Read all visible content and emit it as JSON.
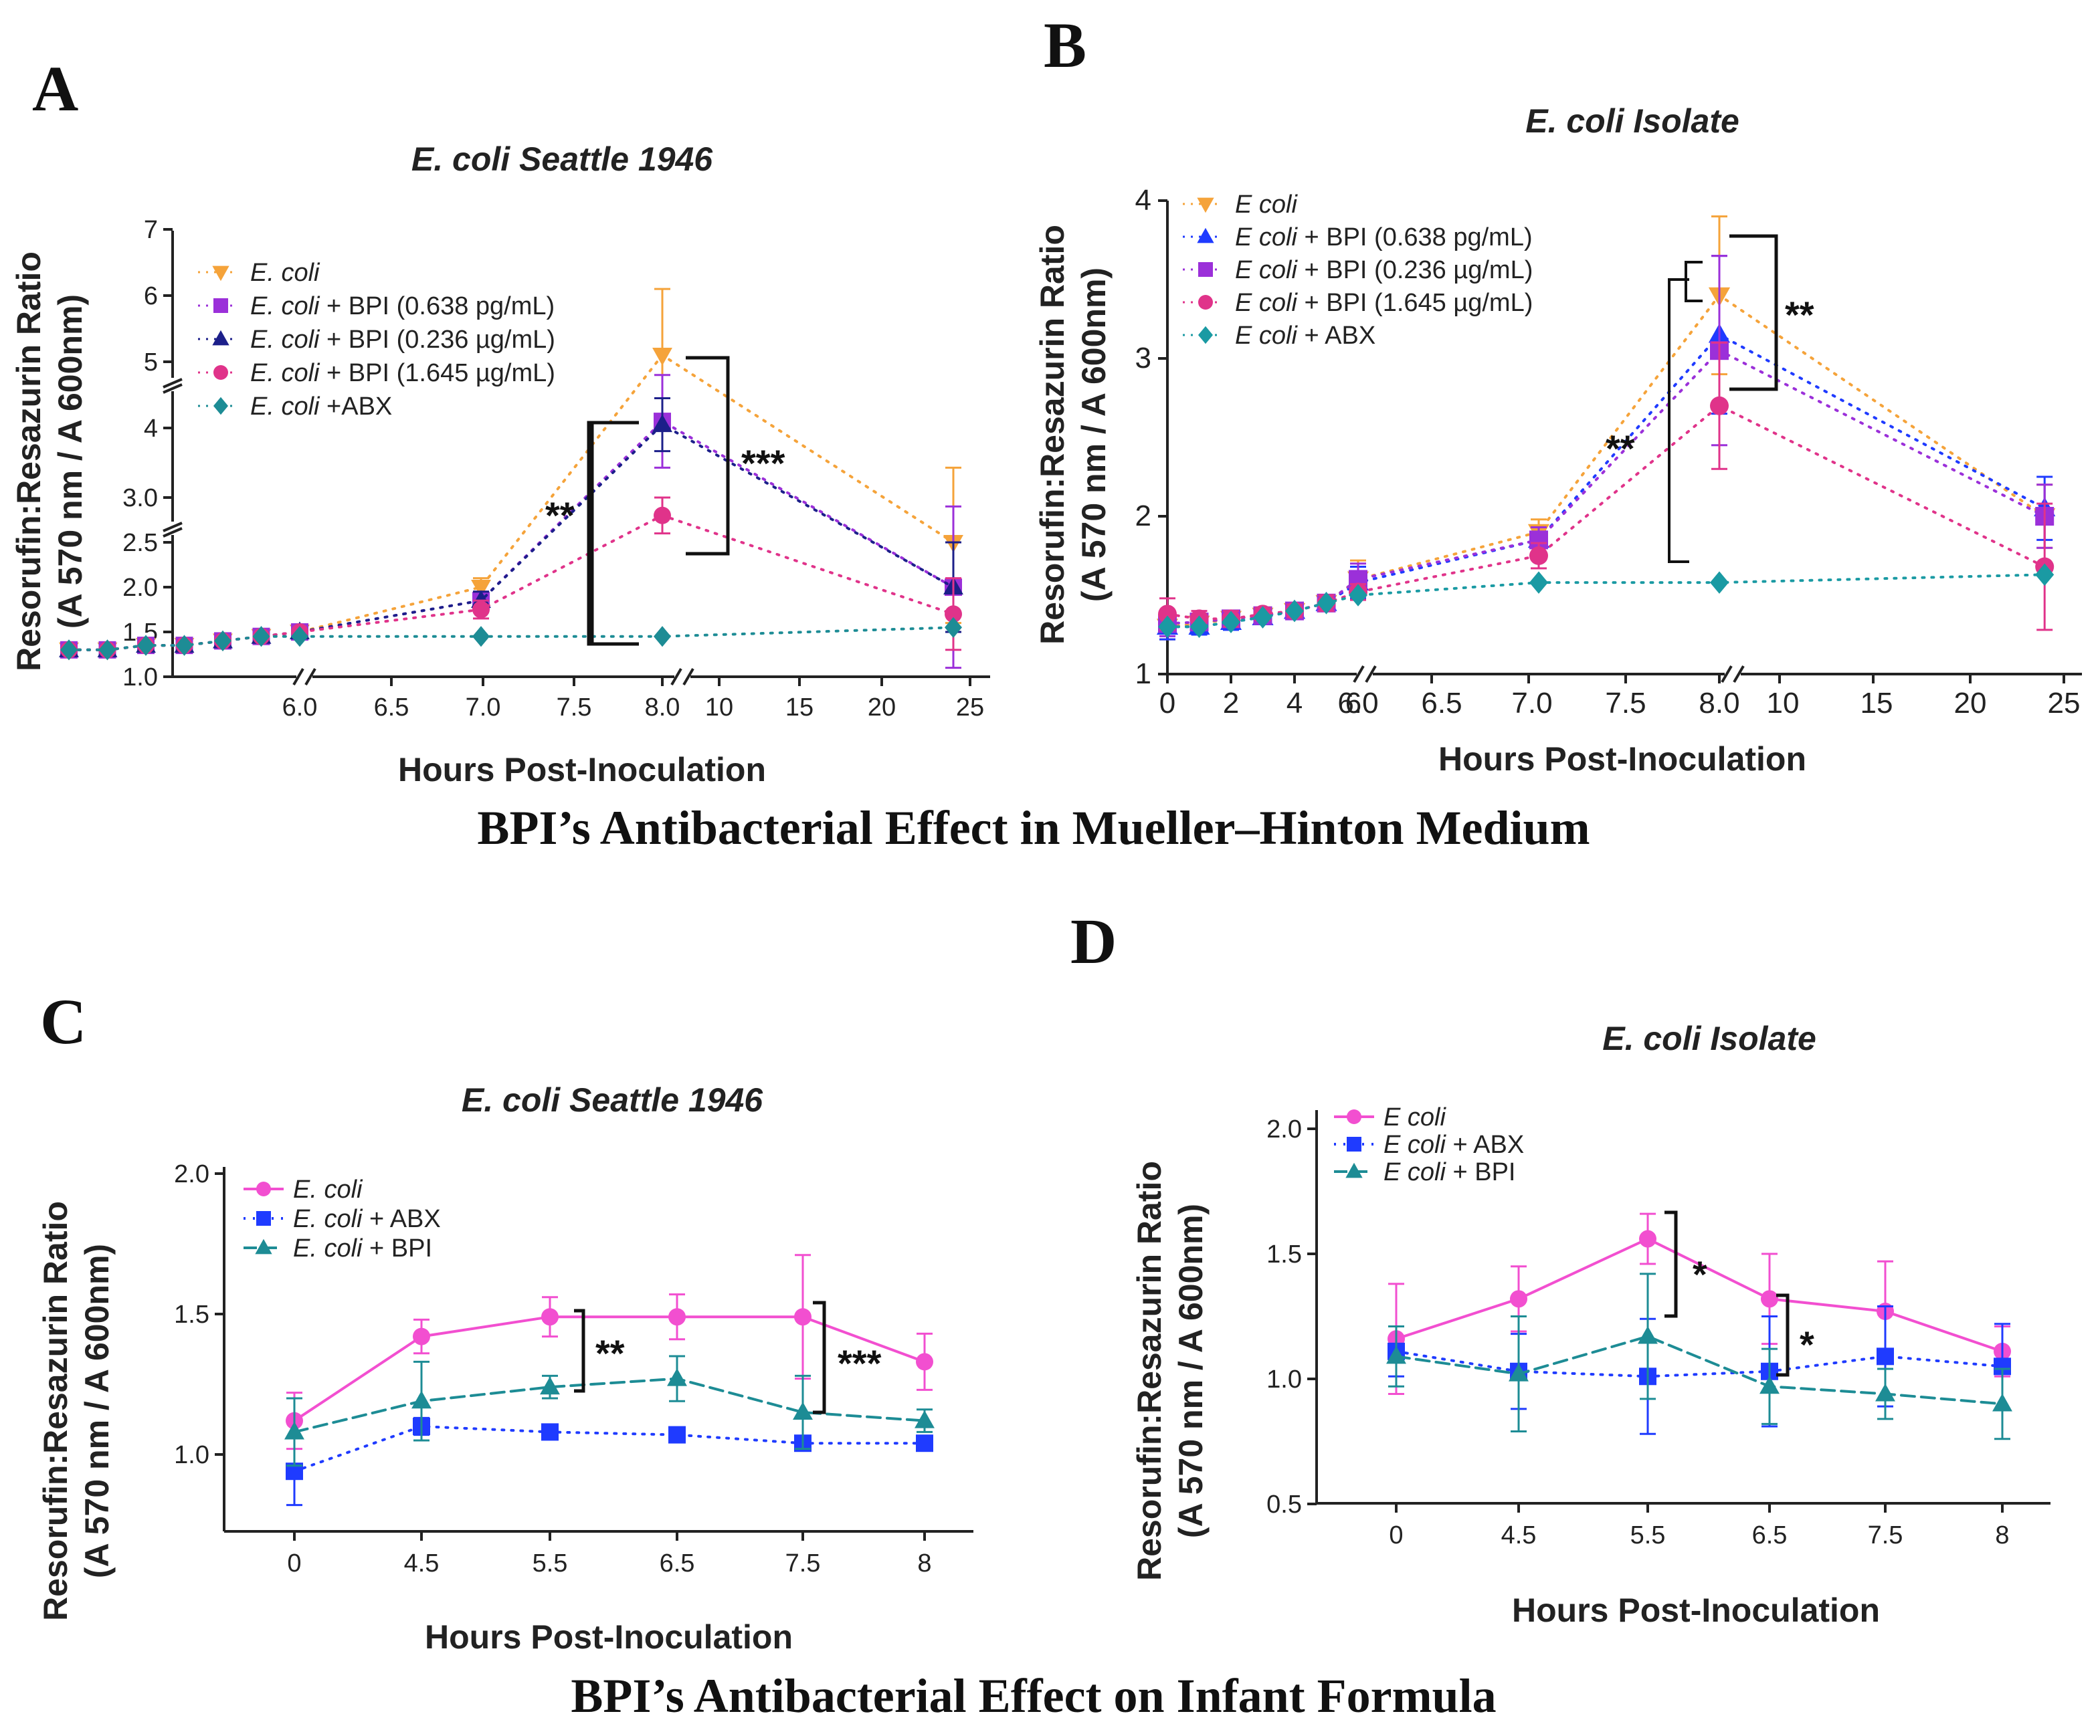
{
  "figure": {
    "caption_top": "BPI’s Antibacterial Effect in Mueller–Hinton Medium",
    "caption_bottom": "BPI’s Antibacterial Effect on Infant Formula"
  },
  "colors": {
    "orange": "#f5a33a",
    "magenta": "#e0338a",
    "purple": "#9b30d9",
    "navy": "#1c1f8a",
    "blue": "#1f3bff",
    "teal": "#1d8c95",
    "pink": "#f24fd0",
    "cyan": "#1a9aa3"
  },
  "chart_data": [
    {
      "id": "A",
      "panel_label": "A",
      "type": "line",
      "title": "E. coli Seattle 1946",
      "xlabel": "Hours Post-Inoculation",
      "ylabel": [
        "Resorufin:Resazurin Ratio",
        "(A 570 nm / A 600nm)"
      ],
      "x_ticks": [
        "6.0",
        "6.5",
        "7.0",
        "7.5",
        "8.0",
        "10",
        "15",
        "20",
        "25"
      ],
      "y_ticks": [
        "1.0",
        "1.5",
        "2.0",
        "2.5",
        "3.0",
        "4",
        "5",
        "6",
        "7"
      ],
      "ylim": [
        1.0,
        7.0
      ],
      "series": [
        {
          "name": "E. coli",
          "legend_italic": "E. coli",
          "legend_rest": "",
          "color": "#f5a33a",
          "marker": "tri-down",
          "x": [
            4.5,
            4.75,
            5.0,
            5.25,
            5.5,
            5.75,
            6.0,
            7.0,
            8.0,
            24
          ],
          "y": [
            1.3,
            1.3,
            1.35,
            1.35,
            1.4,
            1.45,
            1.5,
            2.0,
            5.1,
            2.5
          ],
          "err": [
            0,
            0,
            0,
            0,
            0,
            0,
            0,
            0.1,
            1.0,
            0.9
          ]
        },
        {
          "name": "E. coli + BPI (0.638 pg/mL)",
          "legend_italic": "E. coli",
          "legend_rest": " + BPI (0.638 pg/mL)",
          "color": "#9b30d9",
          "marker": "square",
          "x": [
            4.5,
            4.75,
            5.0,
            5.25,
            5.5,
            5.75,
            6.0,
            7.0,
            8.0,
            24
          ],
          "y": [
            1.3,
            1.3,
            1.35,
            1.35,
            1.4,
            1.45,
            1.5,
            1.85,
            4.1,
            2.0
          ],
          "err": [
            0,
            0,
            0,
            0,
            0,
            0,
            0,
            0.1,
            0.7,
            0.9
          ]
        },
        {
          "name": "E. coli + BPI (0.236 µg/mL)",
          "legend_italic": "E. coli",
          "legend_rest": " + BPI (0.236 µg/mL)",
          "color": "#1c1f8a",
          "marker": "tri-up",
          "x": [
            4.5,
            4.75,
            5.0,
            5.25,
            5.5,
            5.75,
            6.0,
            7.0,
            8.0,
            24
          ],
          "y": [
            1.3,
            1.3,
            1.35,
            1.35,
            1.4,
            1.45,
            1.5,
            1.85,
            4.05,
            2.0
          ],
          "err": [
            0,
            0,
            0,
            0,
            0,
            0,
            0,
            0.1,
            0.4,
            0.5
          ]
        },
        {
          "name": "E. coli + BPI (1.645 µg/mL)",
          "legend_italic": "E. coli",
          "legend_rest": " + BPI (1.645 µg/mL)",
          "color": "#e0338a",
          "marker": "circle",
          "x": [
            4.5,
            4.75,
            5.0,
            5.25,
            5.5,
            5.75,
            6.0,
            7.0,
            8.0,
            24
          ],
          "y": [
            1.3,
            1.3,
            1.35,
            1.35,
            1.4,
            1.45,
            1.5,
            1.75,
            2.8,
            1.7
          ],
          "err": [
            0,
            0,
            0,
            0,
            0,
            0,
            0,
            0.1,
            0.2,
            0.4
          ]
        },
        {
          "name": "E. coli +ABX",
          "legend_italic": "E. coli",
          "legend_rest": " +ABX",
          "color": "#1d8c95",
          "marker": "diamond",
          "x": [
            4.5,
            4.75,
            5.0,
            5.25,
            5.5,
            5.75,
            6.0,
            7.0,
            8.0,
            24
          ],
          "y": [
            1.3,
            1.3,
            1.35,
            1.35,
            1.4,
            1.45,
            1.45,
            1.45,
            1.45,
            1.55
          ],
          "err": [
            0,
            0,
            0,
            0,
            0,
            0,
            0,
            0,
            0,
            0
          ]
        }
      ],
      "annotations": [
        "**",
        "***"
      ]
    },
    {
      "id": "B",
      "panel_label": "B",
      "type": "line",
      "title": "E. coli Isolate",
      "xlabel": "Hours Post-Inoculation",
      "ylabel": [
        "Resorufin:Resazurin Ratio",
        "(A 570 nm / A 600nm)"
      ],
      "x_ticks": [
        "0",
        "2",
        "4",
        "6",
        "6.0",
        "6.5",
        "7.0",
        "7.5",
        "8.0",
        "10",
        "15",
        "20",
        "25"
      ],
      "y_ticks": [
        "1",
        "2",
        "3",
        "4"
      ],
      "ylim": [
        1,
        4
      ],
      "series": [
        {
          "name": "E coli",
          "legend_italic": "E coli",
          "legend_rest": "",
          "color": "#f5a33a",
          "marker": "tri-down",
          "x": [
            0,
            1,
            2,
            3,
            4,
            5,
            6,
            7.0,
            8.0,
            24
          ],
          "y": [
            1.3,
            1.32,
            1.35,
            1.37,
            1.4,
            1.45,
            1.6,
            1.9,
            3.4,
            2.0
          ],
          "err": [
            0.08,
            0.05,
            0.05,
            0.04,
            0.04,
            0.05,
            0.12,
            0.08,
            0.5,
            0.2
          ]
        },
        {
          "name": "E coli + BPI (0.638 pg/mL)",
          "legend_italic": "E coli",
          "legend_rest": " + BPI (0.638 pg/mL)",
          "color": "#1f3bff",
          "marker": "tri-up",
          "x": [
            0,
            1,
            2,
            3,
            4,
            5,
            6,
            7.0,
            8.0,
            24
          ],
          "y": [
            1.3,
            1.3,
            1.33,
            1.36,
            1.4,
            1.45,
            1.58,
            1.85,
            3.15,
            2.05
          ],
          "err": [
            0.08,
            0.05,
            0.05,
            0.04,
            0.04,
            0.05,
            0.1,
            0.08,
            0.5,
            0.2
          ]
        },
        {
          "name": "E coli + BPI (0.236 µg/mL)",
          "legend_italic": "E coli",
          "legend_rest": " + BPI (0.236 µg/mL)",
          "color": "#9b30d9",
          "marker": "square",
          "x": [
            0,
            1,
            2,
            3,
            4,
            5,
            6,
            7.0,
            8.0,
            24
          ],
          "y": [
            1.32,
            1.33,
            1.35,
            1.37,
            1.4,
            1.45,
            1.6,
            1.85,
            3.05,
            2.0
          ],
          "err": [
            0.08,
            0.05,
            0.05,
            0.04,
            0.04,
            0.05,
            0.1,
            0.08,
            0.6,
            0.2
          ]
        },
        {
          "name": "E coli + BPI (1.645 µg/mL)",
          "legend_italic": "E coli",
          "legend_rest": " + BPI (1.645 µg/mL)",
          "color": "#e0338a",
          "marker": "circle",
          "x": [
            0,
            1,
            2,
            3,
            4,
            5,
            6,
            7.0,
            8.0,
            24
          ],
          "y": [
            1.38,
            1.35,
            1.35,
            1.38,
            1.4,
            1.45,
            1.52,
            1.75,
            2.7,
            1.68
          ],
          "err": [
            0.1,
            0.05,
            0.05,
            0.04,
            0.04,
            0.05,
            0.05,
            0.08,
            0.4,
            0.4
          ]
        },
        {
          "name": "E coli + ABX",
          "legend_italic": "E coli",
          "legend_rest": " + ABX",
          "color": "#1a9aa3",
          "marker": "diamond",
          "x": [
            0,
            1,
            2,
            3,
            4,
            5,
            6,
            7.0,
            8.0,
            24
          ],
          "y": [
            1.3,
            1.3,
            1.33,
            1.36,
            1.4,
            1.45,
            1.5,
            1.58,
            1.58,
            1.63
          ],
          "err": [
            0,
            0,
            0,
            0,
            0,
            0,
            0,
            0,
            0,
            0
          ]
        }
      ],
      "annotations": [
        "**",
        "**"
      ]
    },
    {
      "id": "C",
      "panel_label": "C",
      "type": "line",
      "title": "E. coli Seattle 1946",
      "xlabel": "Hours Post-Inoculation",
      "ylabel": [
        "Resorufin:Resazurin Ratio",
        "(A 570 nm / A 600nm)"
      ],
      "categories": [
        "0",
        "4.5",
        "5.5",
        "6.5",
        "7.5",
        "8"
      ],
      "y_ticks": [
        "1.0",
        "1.5",
        "2.0"
      ],
      "ylim": [
        0.7,
        2.0
      ],
      "series": [
        {
          "name": "E. coli",
          "legend_italic": "E. coli",
          "legend_rest": "",
          "color": "#f24fd0",
          "marker": "circle",
          "dash": "solid",
          "values": [
            1.12,
            1.42,
            1.49,
            1.49,
            1.49,
            1.33
          ],
          "err": [
            0.1,
            0.06,
            0.07,
            0.08,
            0.22,
            0.1
          ]
        },
        {
          "name": "E. coli + ABX",
          "legend_italic": "E. coli",
          "legend_rest": " + ABX",
          "color": "#1f3bff",
          "marker": "square",
          "dash": "dotted",
          "values": [
            0.94,
            1.1,
            1.08,
            1.07,
            1.04,
            1.04
          ],
          "err": [
            0.12,
            0.03,
            0.02,
            0.02,
            0.02,
            0.02
          ]
        },
        {
          "name": "E. coli + BPI",
          "legend_italic": "E. coli",
          "legend_rest": "  + BPI",
          "color": "#1d8c95",
          "marker": "tri-up",
          "dash": "dashed",
          "values": [
            1.08,
            1.19,
            1.24,
            1.27,
            1.15,
            1.12
          ],
          "err": [
            0.12,
            0.14,
            0.04,
            0.08,
            0.13,
            0.04
          ]
        }
      ],
      "annotations": [
        "**",
        "***"
      ]
    },
    {
      "id": "D",
      "panel_label": "D",
      "type": "line",
      "title": "E. coli Isolate",
      "xlabel": "Hours Post-Inoculation",
      "ylabel": [
        "Resorufin:Resazurin Ratio",
        "(A 570 nm / A 600nm)"
      ],
      "categories": [
        "0",
        "4.5",
        "5.5",
        "6.5",
        "7.5",
        "8"
      ],
      "y_ticks": [
        "0.5",
        "1.0",
        "1.5",
        "2.0"
      ],
      "ylim": [
        0.5,
        2.0
      ],
      "series": [
        {
          "name": "E coli",
          "legend_italic": "E coli",
          "legend_rest": "",
          "color": "#f24fd0",
          "marker": "circle",
          "dash": "solid",
          "values": [
            1.16,
            1.32,
            1.56,
            1.32,
            1.27,
            1.11
          ],
          "err": [
            0.22,
            0.13,
            0.1,
            0.18,
            0.2,
            0.1
          ]
        },
        {
          "name": "E coli + ABX",
          "legend_italic": "E coli",
          "legend_rest": " + ABX",
          "color": "#1f3bff",
          "marker": "square",
          "dash": "dotted",
          "values": [
            1.11,
            1.03,
            1.01,
            1.03,
            1.09,
            1.05
          ],
          "err": [
            0.1,
            0.15,
            0.23,
            0.22,
            0.2,
            0.17
          ]
        },
        {
          "name": "E coli + BPI",
          "legend_italic": "E coli",
          "legend_rest": " + BPI",
          "color": "#1d8c95",
          "marker": "tri-up",
          "dash": "dashed",
          "values": [
            1.09,
            1.02,
            1.17,
            0.97,
            0.94,
            0.9
          ],
          "err": [
            0.12,
            0.23,
            0.25,
            0.15,
            0.1,
            0.14
          ]
        }
      ],
      "annotations": [
        "*",
        "*"
      ]
    }
  ]
}
